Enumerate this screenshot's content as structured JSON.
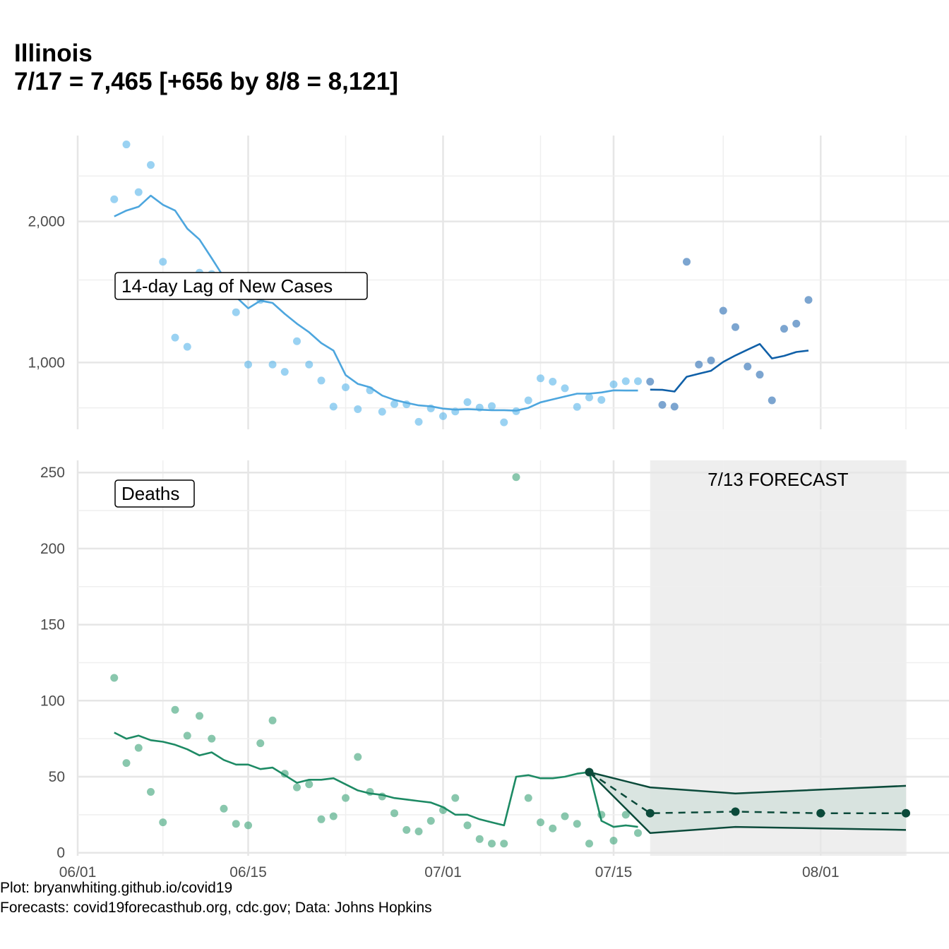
{
  "title": {
    "line1": "Illinois",
    "line2": "7/17 = 7,465 [+656 by 8/8 = 8,121]"
  },
  "caption": {
    "line1": "Plot: bryanwhiting.github.io/covid19",
    "line2": "Forecasts: covid19forecasthub.org, cdc.gov; Data: Johns Hopkins"
  },
  "colors": {
    "cases_light": "#56B4E9",
    "cases_line_light": "#4da6de",
    "cases_dark": "#1060a8",
    "cases_point_dark": "#5b8fc4",
    "deaths_point": "#3aa176",
    "deaths_line": "#1d8a64",
    "forecast_dark": "#0b4a3a",
    "forecast_band": "#d3e0dc",
    "forecast_shade": "#eeeeee",
    "grid": "#e6e6e6"
  },
  "chart_data": [
    {
      "type": "scatter",
      "panel_label": "14-day Lag of New Cases",
      "y_scale": "log",
      "ylim": [
        720,
        3050
      ],
      "y_ticks": [
        1000,
        2000
      ],
      "y_tick_labels": [
        "1,000",
        "2,000"
      ],
      "x_ticks": [
        "06/01",
        "06/15",
        "07/01",
        "07/15",
        "08/01"
      ],
      "xlim": [
        "2020-06-01",
        "2020-08-10"
      ],
      "grid": true,
      "observed_points": [
        [
          "2020-06-04",
          2230
        ],
        [
          "2020-06-05",
          2920
        ],
        [
          "2020-06-06",
          2310
        ],
        [
          "2020-06-07",
          2640
        ],
        [
          "2020-06-08",
          1640
        ],
        [
          "2020-06-09",
          1130
        ],
        [
          "2020-06-10",
          1080
        ],
        [
          "2020-06-11",
          1555
        ],
        [
          "2020-06-12",
          1545
        ],
        [
          "2020-06-13",
          1400
        ],
        [
          "2020-06-14",
          1280
        ],
        [
          "2020-06-15",
          990
        ],
        [
          "2020-06-16",
          1360
        ],
        [
          "2020-06-17",
          990
        ],
        [
          "2020-06-18",
          955
        ],
        [
          "2020-06-19",
          1110
        ],
        [
          "2020-06-20",
          990
        ],
        [
          "2020-06-21",
          915
        ],
        [
          "2020-06-22",
          805
        ],
        [
          "2020-06-23",
          885
        ],
        [
          "2020-06-24",
          795
        ],
        [
          "2020-06-25",
          872
        ],
        [
          "2020-06-26",
          785
        ],
        [
          "2020-06-27",
          815
        ],
        [
          "2020-06-28",
          814
        ],
        [
          "2020-06-29",
          747
        ],
        [
          "2020-06-30",
          798
        ],
        [
          "2020-07-01",
          768
        ],
        [
          "2020-07-02",
          786
        ],
        [
          "2020-07-03",
          823
        ],
        [
          "2020-07-04",
          801
        ],
        [
          "2020-07-05",
          807
        ],
        [
          "2020-07-06",
          745
        ],
        [
          "2020-07-07",
          787
        ],
        [
          "2020-07-08",
          830
        ],
        [
          "2020-07-09",
          925
        ],
        [
          "2020-07-10",
          910
        ],
        [
          "2020-07-11",
          881
        ],
        [
          "2020-07-12",
          804
        ],
        [
          "2020-07-13",
          842
        ],
        [
          "2020-07-14",
          832
        ],
        [
          "2020-07-15",
          898
        ],
        [
          "2020-07-16",
          912
        ],
        [
          "2020-07-17",
          912
        ]
      ],
      "observed_trend": [
        [
          "2020-06-04",
          2050
        ],
        [
          "2020-06-05",
          2110
        ],
        [
          "2020-06-06",
          2150
        ],
        [
          "2020-06-07",
          2270
        ],
        [
          "2020-06-08",
          2170
        ],
        [
          "2020-06-09",
          2110
        ],
        [
          "2020-06-10",
          1930
        ],
        [
          "2020-06-11",
          1830
        ],
        [
          "2020-06-12",
          1670
        ],
        [
          "2020-06-13",
          1520
        ],
        [
          "2020-06-14",
          1380
        ],
        [
          "2020-06-15",
          1305
        ],
        [
          "2020-06-16",
          1355
        ],
        [
          "2020-06-17",
          1340
        ],
        [
          "2020-06-18",
          1270
        ],
        [
          "2020-06-19",
          1210
        ],
        [
          "2020-06-20",
          1160
        ],
        [
          "2020-06-21",
          1100
        ],
        [
          "2020-06-22",
          1060
        ],
        [
          "2020-06-23",
          940
        ],
        [
          "2020-06-24",
          900
        ],
        [
          "2020-06-25",
          885
        ],
        [
          "2020-06-26",
          850
        ],
        [
          "2020-06-27",
          832
        ],
        [
          "2020-06-28",
          820
        ],
        [
          "2020-06-29",
          810
        ],
        [
          "2020-06-30",
          806
        ],
        [
          "2020-07-01",
          797
        ],
        [
          "2020-07-02",
          793
        ],
        [
          "2020-07-03",
          795
        ],
        [
          "2020-07-04",
          793
        ],
        [
          "2020-07-05",
          791
        ],
        [
          "2020-07-06",
          791
        ],
        [
          "2020-07-07",
          789
        ],
        [
          "2020-07-08",
          800
        ],
        [
          "2020-07-09",
          822
        ],
        [
          "2020-07-10",
          834
        ],
        [
          "2020-07-11",
          846
        ],
        [
          "2020-07-12",
          858
        ],
        [
          "2020-07-13",
          858
        ],
        [
          "2020-07-14",
          863
        ],
        [
          "2020-07-15",
          872
        ],
        [
          "2020-07-16",
          871
        ],
        [
          "2020-07-17",
          871
        ]
      ],
      "forecast_points": [
        [
          "2020-07-18",
          910
        ],
        [
          "2020-07-19",
          812
        ],
        [
          "2020-07-20",
          805
        ],
        [
          "2020-07-21",
          1640
        ],
        [
          "2020-07-22",
          990
        ],
        [
          "2020-07-23",
          1010
        ],
        [
          "2020-07-24",
          1290
        ],
        [
          "2020-07-25",
          1190
        ],
        [
          "2020-07-26",
          980
        ],
        [
          "2020-07-27",
          942
        ],
        [
          "2020-07-28",
          830
        ],
        [
          "2020-07-29",
          1180
        ],
        [
          "2020-07-30",
          1210
        ],
        [
          "2020-07-31",
          1360
        ]
      ],
      "forecast_trend": [
        [
          "2020-07-18",
          875
        ],
        [
          "2020-07-19",
          874
        ],
        [
          "2020-07-20",
          867
        ],
        [
          "2020-07-21",
          932
        ],
        [
          "2020-07-22",
          946
        ],
        [
          "2020-07-23",
          960
        ],
        [
          "2020-07-24",
          1003
        ],
        [
          "2020-07-25",
          1035
        ],
        [
          "2020-07-26",
          1065
        ],
        [
          "2020-07-27",
          1095
        ],
        [
          "2020-07-28",
          1020
        ],
        [
          "2020-07-29",
          1033
        ],
        [
          "2020-07-30",
          1053
        ],
        [
          "2020-07-31",
          1060
        ]
      ]
    },
    {
      "type": "scatter",
      "panel_label": "Deaths",
      "annotation": "7/13 FORECAST",
      "ylim": [
        -2,
        258
      ],
      "y_ticks": [
        0,
        50,
        100,
        150,
        200,
        250
      ],
      "y_tick_labels": [
        "0",
        "50",
        "100",
        "150",
        "200",
        "250"
      ],
      "x_ticks": [
        "06/01",
        "06/15",
        "07/01",
        "07/15",
        "08/01"
      ],
      "xlim": [
        "2020-06-01",
        "2020-08-10"
      ],
      "grid": true,
      "forecast_window": [
        "2020-07-18",
        "2020-08-08"
      ],
      "observed_points": [
        [
          "2020-06-04",
          115
        ],
        [
          "2020-06-05",
          59
        ],
        [
          "2020-06-06",
          69
        ],
        [
          "2020-06-07",
          40
        ],
        [
          "2020-06-08",
          20
        ],
        [
          "2020-06-09",
          94
        ],
        [
          "2020-06-10",
          77
        ],
        [
          "2020-06-11",
          90
        ],
        [
          "2020-06-12",
          75
        ],
        [
          "2020-06-13",
          29
        ],
        [
          "2020-06-14",
          19
        ],
        [
          "2020-06-15",
          18
        ],
        [
          "2020-06-16",
          72
        ],
        [
          "2020-06-17",
          87
        ],
        [
          "2020-06-18",
          52
        ],
        [
          "2020-06-19",
          43
        ],
        [
          "2020-06-20",
          45
        ],
        [
          "2020-06-21",
          22
        ],
        [
          "2020-06-22",
          24
        ],
        [
          "2020-06-23",
          36
        ],
        [
          "2020-06-24",
          63
        ],
        [
          "2020-06-25",
          40
        ],
        [
          "2020-06-26",
          37
        ],
        [
          "2020-06-27",
          26
        ],
        [
          "2020-06-28",
          15
        ],
        [
          "2020-06-29",
          14
        ],
        [
          "2020-06-30",
          21
        ],
        [
          "2020-07-01",
          28
        ],
        [
          "2020-07-02",
          36
        ],
        [
          "2020-07-03",
          18
        ],
        [
          "2020-07-04",
          9
        ],
        [
          "2020-07-05",
          6
        ],
        [
          "2020-07-06",
          6
        ],
        [
          "2020-07-07",
          247
        ],
        [
          "2020-07-08",
          36
        ],
        [
          "2020-07-09",
          20
        ],
        [
          "2020-07-10",
          16
        ],
        [
          "2020-07-11",
          24
        ],
        [
          "2020-07-12",
          19
        ],
        [
          "2020-07-13",
          6
        ],
        [
          "2020-07-14",
          25
        ],
        [
          "2020-07-15",
          8
        ],
        [
          "2020-07-16",
          25
        ],
        [
          "2020-07-17",
          13
        ]
      ],
      "observed_trend": [
        [
          "2020-06-04",
          79
        ],
        [
          "2020-06-05",
          75
        ],
        [
          "2020-06-06",
          77
        ],
        [
          "2020-06-07",
          74
        ],
        [
          "2020-06-08",
          73
        ],
        [
          "2020-06-09",
          71
        ],
        [
          "2020-06-10",
          68
        ],
        [
          "2020-06-11",
          64
        ],
        [
          "2020-06-12",
          66
        ],
        [
          "2020-06-13",
          61
        ],
        [
          "2020-06-14",
          58
        ],
        [
          "2020-06-15",
          58
        ],
        [
          "2020-06-16",
          55
        ],
        [
          "2020-06-17",
          56
        ],
        [
          "2020-06-18",
          51
        ],
        [
          "2020-06-19",
          46
        ],
        [
          "2020-06-20",
          48
        ],
        [
          "2020-06-21",
          48
        ],
        [
          "2020-06-22",
          49
        ],
        [
          "2020-06-23",
          45
        ],
        [
          "2020-06-24",
          41
        ],
        [
          "2020-06-25",
          39
        ],
        [
          "2020-06-26",
          38
        ],
        [
          "2020-06-27",
          36
        ],
        [
          "2020-06-28",
          35
        ],
        [
          "2020-06-29",
          34
        ],
        [
          "2020-06-30",
          33
        ],
        [
          "2020-07-01",
          30
        ],
        [
          "2020-07-02",
          25
        ],
        [
          "2020-07-03",
          25
        ],
        [
          "2020-07-04",
          22
        ],
        [
          "2020-07-05",
          20
        ],
        [
          "2020-07-06",
          18
        ],
        [
          "2020-07-07",
          50
        ],
        [
          "2020-07-08",
          51
        ],
        [
          "2020-07-09",
          49
        ],
        [
          "2020-07-10",
          49
        ],
        [
          "2020-07-11",
          50
        ],
        [
          "2020-07-12",
          52
        ],
        [
          "2020-07-13",
          53
        ],
        [
          "2020-07-14",
          21
        ],
        [
          "2020-07-15",
          17
        ],
        [
          "2020-07-16",
          18
        ],
        [
          "2020-07-17",
          17
        ]
      ],
      "forecast": {
        "dates": [
          "2020-07-13",
          "2020-07-18",
          "2020-07-25",
          "2020-08-01",
          "2020-08-08"
        ],
        "point": [
          53,
          26,
          27,
          26,
          26
        ],
        "upper": [
          53,
          43,
          39,
          null,
          44
        ],
        "lower": [
          53,
          13,
          17,
          null,
          15
        ]
      }
    }
  ]
}
